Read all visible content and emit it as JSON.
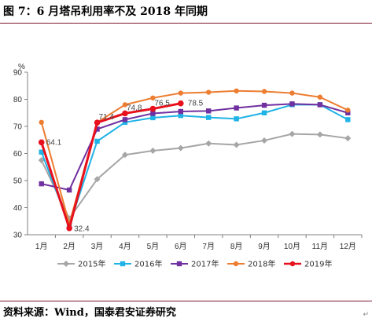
{
  "header": {
    "title": "图 7：6 月塔吊利用率不及 2018 年同期"
  },
  "footer": {
    "source": "资料来源：Wind，国泰君安证券研究",
    "return_mark": "↵"
  },
  "chart_data": {
    "type": "line",
    "categories": [
      "1月",
      "2月",
      "3月",
      "4月",
      "5月",
      "6月",
      "7月",
      "8月",
      "9月",
      "10月",
      "11月",
      "12月"
    ],
    "y_unit": "%",
    "ylim": [
      30,
      90
    ],
    "yticks": [
      30,
      40,
      50,
      60,
      70,
      80,
      90
    ],
    "grid": false,
    "legend_position": "bottom",
    "series": [
      {
        "name": "2015年",
        "color": "#a6a6a6",
        "marker": "diamond",
        "values": [
          57.5,
          36.0,
          50.5,
          59.5,
          61.0,
          62.0,
          63.7,
          63.2,
          64.8,
          67.2,
          67.0,
          65.6
        ]
      },
      {
        "name": "2016年",
        "color": "#1fb3e6",
        "marker": "square",
        "values": [
          60.5,
          33.5,
          64.5,
          71.5,
          73.2,
          74.0,
          73.3,
          72.8,
          75.0,
          78.0,
          78.0,
          72.5
        ]
      },
      {
        "name": "2017年",
        "color": "#7030a0",
        "marker": "square",
        "values": [
          48.8,
          46.5,
          69.0,
          72.5,
          74.8,
          75.5,
          75.7,
          76.8,
          77.8,
          78.3,
          78.0,
          75.0
        ]
      },
      {
        "name": "2018年",
        "color": "#ed7d31",
        "marker": "circle",
        "values": [
          71.5,
          34.0,
          71.5,
          78.0,
          80.5,
          82.3,
          82.6,
          83.1,
          82.9,
          82.3,
          80.8,
          76.0
        ]
      },
      {
        "name": "2019年",
        "color": "#e8101c",
        "marker": "circle",
        "values": [
          64.1,
          32.4,
          71.4,
          74.8,
          76.5,
          78.5,
          null,
          null,
          null,
          null,
          null,
          null
        ]
      }
    ],
    "data_labels": [
      {
        "series": "2019年",
        "index": 0,
        "text": "64.1"
      },
      {
        "series": "2019年",
        "index": 1,
        "text": "32.4"
      },
      {
        "series": "2019年",
        "index": 2,
        "text": "71.4"
      },
      {
        "series": "2019年",
        "index": 3,
        "text": "74.8"
      },
      {
        "series": "2019年",
        "index": 4,
        "text": "76.5"
      },
      {
        "series": "2019年",
        "index": 5,
        "text": "78.5"
      }
    ]
  }
}
